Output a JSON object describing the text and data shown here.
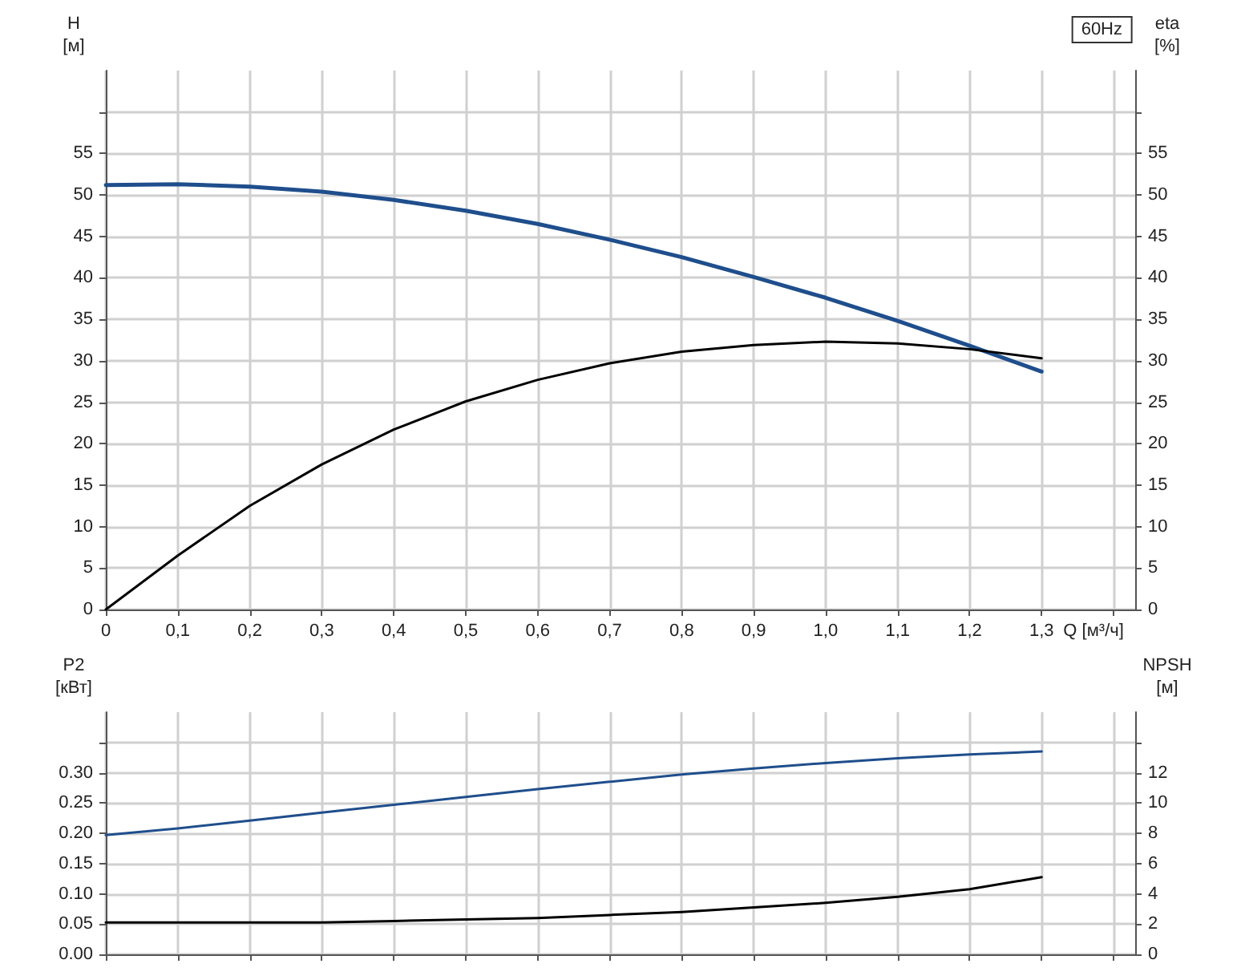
{
  "chart_data": [
    {
      "type": "line",
      "title": "60Hz",
      "xlabel": "Q [м³/ч]",
      "ylabel": "H\n[м]",
      "y2label": "eta\n[%]",
      "x": [
        0,
        0.1,
        0.2,
        0.3,
        0.4,
        0.5,
        0.6,
        0.7,
        0.8,
        0.9,
        1.0,
        1.1,
        1.2,
        1.3
      ],
      "series": [
        {
          "color": "#1f4e8c",
          "values": [
            51.2,
            51.3,
            51.0,
            50.4,
            49.4,
            48.1,
            46.5,
            44.6,
            42.5,
            40.1,
            37.6,
            34.8,
            31.8,
            28.7
          ]
        },
        {
          "color": "#000000",
          "axis": "y2",
          "values": [
            0,
            6.5,
            12.5,
            17.5,
            21.7,
            25.1,
            27.7,
            29.7,
            31.1,
            31.9,
            32.3,
            32.1,
            31.4,
            30.3
          ]
        }
      ],
      "xlim": [
        0,
        1.43
      ],
      "xticks": [
        0,
        {
          "value": 0.1,
          "label": "0,1"
        },
        {
          "value": 0.2,
          "label": "0,2"
        },
        {
          "value": 0.3,
          "label": "0,3"
        },
        {
          "value": 0.4,
          "label": "0,4"
        },
        {
          "value": 0.5,
          "label": "0,5"
        },
        {
          "value": 0.6,
          "label": "0,6"
        },
        {
          "value": 0.7,
          "label": "0,7"
        },
        {
          "value": 0.8,
          "label": "0,8"
        },
        {
          "value": 0.9,
          "label": "0,9"
        },
        {
          "value": 1.0,
          "label": "1,0"
        },
        {
          "value": 1.1,
          "label": "1,1"
        },
        {
          "value": 1.2,
          "label": "1,2"
        },
        {
          "value": 1.3,
          "label": "1,3"
        },
        {
          "value": 1.4,
          "label": null
        }
      ],
      "ylim": [
        0,
        65
      ],
      "yticks": [
        0,
        5,
        10,
        15,
        20,
        25,
        30,
        35,
        40,
        45,
        50,
        55,
        {
          "value": 60,
          "label": null
        }
      ],
      "y2lim": [
        0,
        65
      ],
      "y2ticks": [
        0,
        5,
        10,
        15,
        20,
        25,
        30,
        35,
        40,
        45,
        50,
        55,
        {
          "value": 60,
          "label": null
        }
      ],
      "grid": true,
      "marker": "none",
      "line_style": "solid"
    },
    {
      "type": "line",
      "ylabel": "P2\n[кВт]",
      "y2label": "NPSH\n[м]",
      "x": [
        0,
        0.1,
        0.2,
        0.3,
        0.4,
        0.5,
        0.6,
        0.7,
        0.8,
        0.9,
        1.0,
        1.1,
        1.2,
        1.3
      ],
      "series": [
        {
          "color": "#1f4e8c",
          "values": [
            0.197,
            0.208,
            0.221,
            0.234,
            0.247,
            0.26,
            0.273,
            0.285,
            0.297,
            0.307,
            0.316,
            0.324,
            0.33,
            0.335
          ]
        },
        {
          "color": "#000000",
          "axis": "y2",
          "values": [
            2.1,
            2.1,
            2.1,
            2.1,
            2.2,
            2.3,
            2.4,
            2.6,
            2.8,
            3.1,
            3.4,
            3.8,
            4.3,
            5.1
          ]
        }
      ],
      "xlim": [
        0,
        1.43
      ],
      "xticks": [
        0,
        0.1,
        0.2,
        0.3,
        0.4,
        0.5,
        0.6,
        0.7,
        0.8,
        0.9,
        1.0,
        1.1,
        1.2,
        1.3,
        1.4
      ],
      "ylim": [
        0,
        0.4
      ],
      "yticks": [
        {
          "value": 0,
          "label": "0.00"
        },
        {
          "value": 0.05,
          "label": "0.05"
        },
        {
          "value": 0.1,
          "label": "0.10"
        },
        {
          "value": 0.15,
          "label": "0.15"
        },
        {
          "value": 0.2,
          "label": "0.20"
        },
        {
          "value": 0.25,
          "label": "0.25"
        },
        {
          "value": 0.3,
          "label": "0.30"
        },
        {
          "value": 0.35,
          "label": null
        }
      ],
      "y2lim": [
        0,
        16
      ],
      "y2ticks": [
        0,
        2,
        4,
        6,
        8,
        10,
        12,
        {
          "value": 14,
          "label": null
        }
      ],
      "tick_labels": "y",
      "grid": true,
      "marker": "none",
      "line_style": "solid"
    }
  ]
}
